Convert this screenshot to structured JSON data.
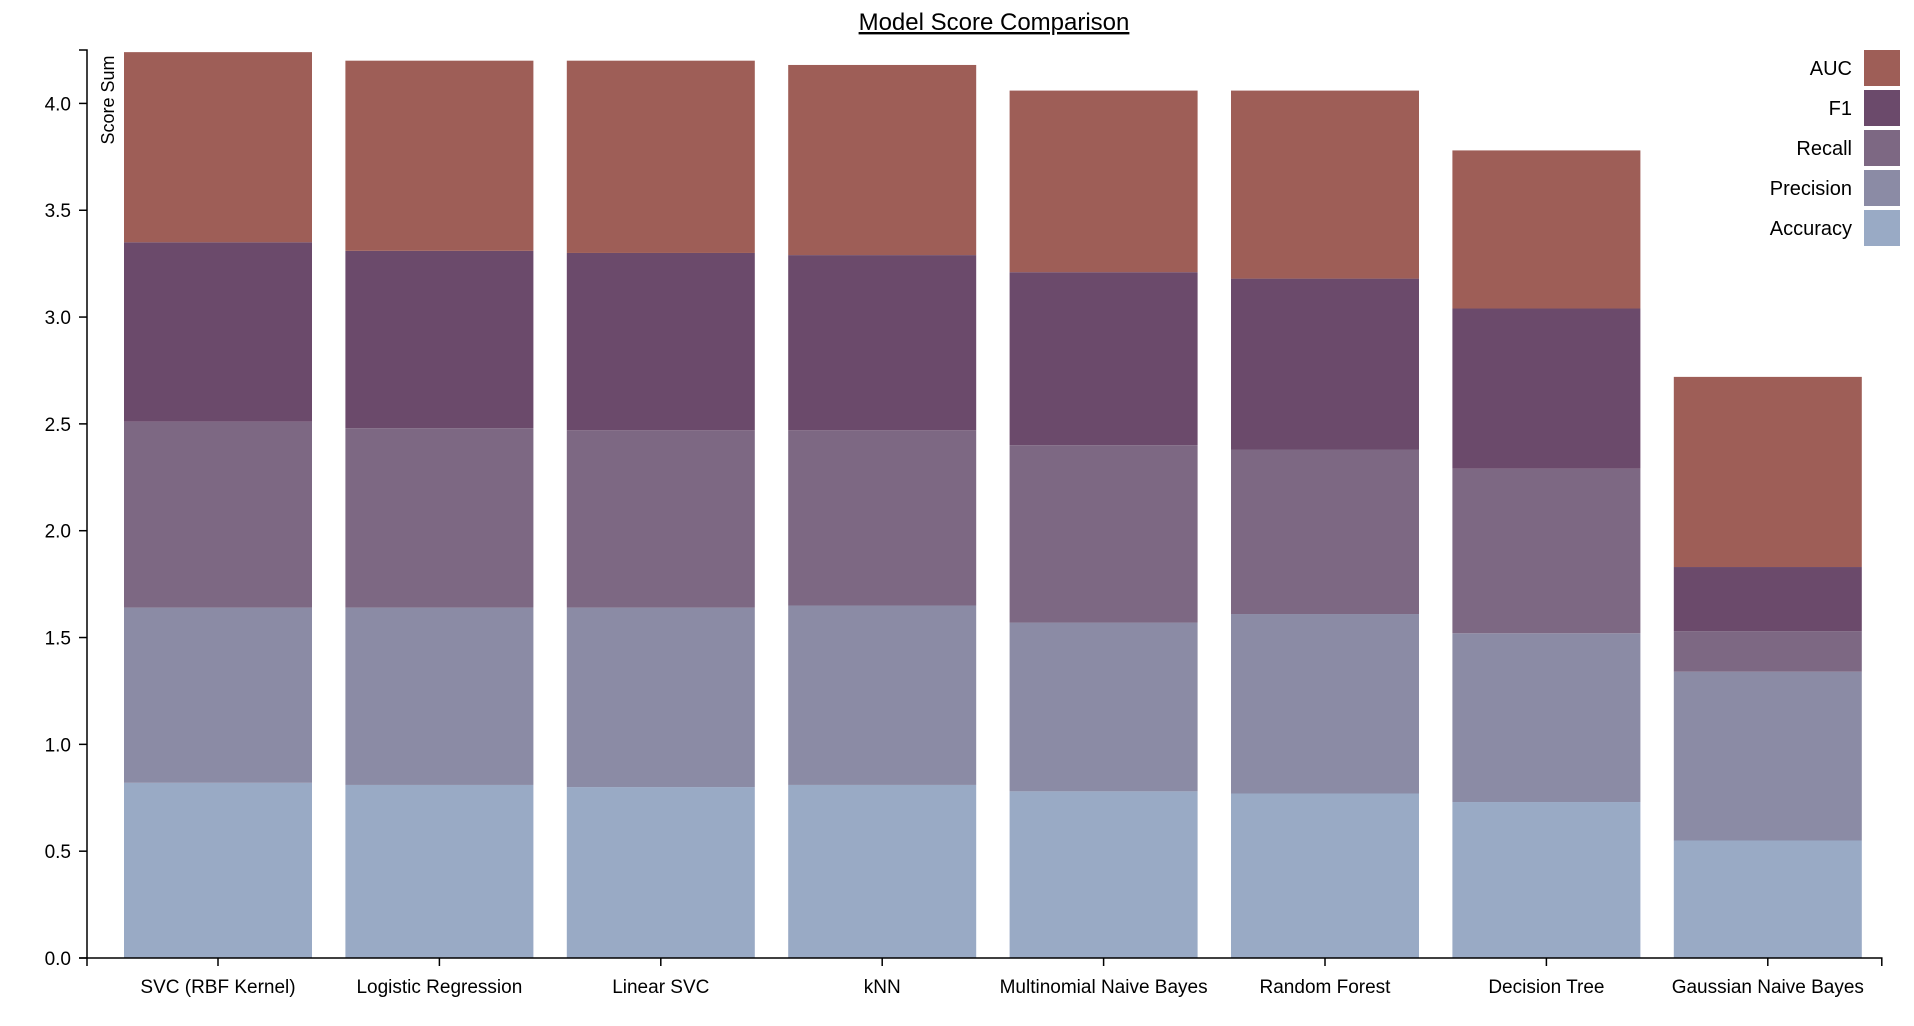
{
  "chart_data": {
    "type": "bar",
    "stacked": true,
    "title": "Model Score Comparison",
    "xlabel": "",
    "ylabel": "Score Sum",
    "ylim": [
      0,
      4.25
    ],
    "yticks": [
      "0.0",
      "0.5",
      "1.0",
      "1.5",
      "2.0",
      "2.5",
      "3.0",
      "3.5",
      "4.0"
    ],
    "grid": false,
    "legend_position": "top-right",
    "categories": [
      "SVC (RBF Kernel)",
      "Logistic Regression",
      "Linear SVC",
      "kNN",
      "Multinomial Naive Bayes",
      "Random Forest",
      "Decision Tree",
      "Gaussian Naive Bayes"
    ],
    "series": [
      {
        "name": "Accuracy",
        "color": "#99aac5",
        "values": [
          0.82,
          0.81,
          0.8,
          0.81,
          0.78,
          0.77,
          0.73,
          0.55
        ]
      },
      {
        "name": "Precision",
        "color": "#8b8ba5",
        "values": [
          0.82,
          0.83,
          0.84,
          0.84,
          0.79,
          0.84,
          0.79,
          0.79
        ]
      },
      {
        "name": "Recall",
        "color": "#7d6883",
        "values": [
          0.87,
          0.84,
          0.83,
          0.82,
          0.83,
          0.77,
          0.77,
          0.19
        ]
      },
      {
        "name": "F1",
        "color": "#6b4a6b",
        "values": [
          0.84,
          0.83,
          0.83,
          0.82,
          0.81,
          0.8,
          0.75,
          0.3
        ]
      },
      {
        "name": "AUC",
        "color": "#9e5e57",
        "values": [
          0.89,
          0.89,
          0.9,
          0.89,
          0.85,
          0.88,
          0.74,
          0.89
        ]
      }
    ],
    "legend_order": [
      "AUC",
      "F1",
      "Recall",
      "Precision",
      "Accuracy"
    ]
  }
}
